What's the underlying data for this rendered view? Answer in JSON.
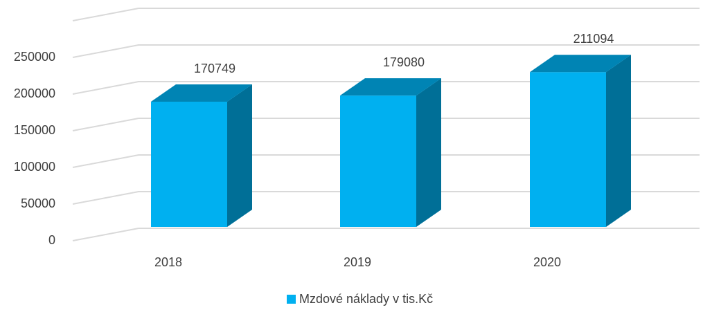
{
  "chart_data": {
    "type": "bar3d",
    "categories": [
      "2018",
      "2019",
      "2020"
    ],
    "series": [
      {
        "name": "Mzdové náklady v tis.Kč",
        "color": "#00b0f0",
        "values": [
          170749,
          179080,
          211094
        ]
      }
    ],
    "ylim": [
      0,
      300000
    ],
    "yticks": [
      0,
      50000,
      100000,
      150000,
      200000,
      250000
    ],
    "grid": true,
    "legend": "bottom"
  }
}
